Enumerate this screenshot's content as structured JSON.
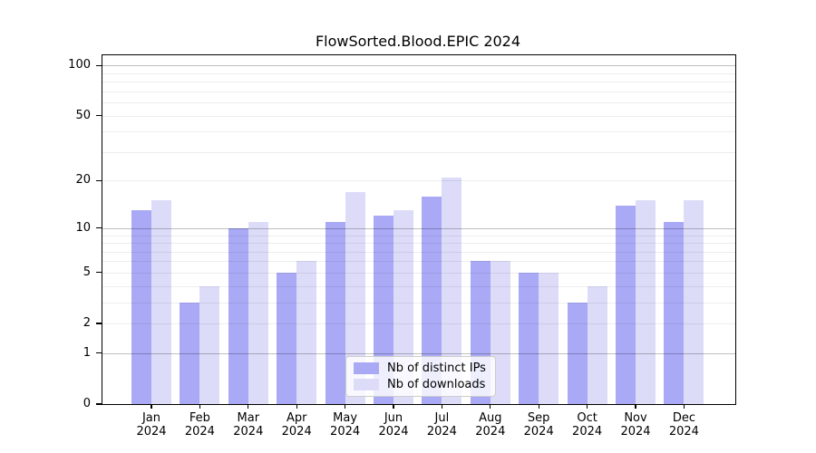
{
  "chart_data": {
    "type": "bar",
    "title": "FlowSorted.Blood.EPIC 2024",
    "categories": [
      "Jan 2024",
      "Feb 2024",
      "Mar 2024",
      "Apr 2024",
      "May 2024",
      "Jun 2024",
      "Jul 2024",
      "Aug 2024",
      "Sep 2024",
      "Oct 2024",
      "Nov 2024",
      "Dec 2024"
    ],
    "series": [
      {
        "name": "Nb of distinct IPs",
        "color": "#a9a9f6",
        "values": [
          13,
          3,
          10,
          5,
          11,
          12,
          16,
          6,
          5,
          3,
          14,
          11
        ]
      },
      {
        "name": "Nb of downloads",
        "color": "#dcdcf9",
        "values": [
          15,
          4,
          11,
          6,
          17,
          13,
          21,
          6,
          5,
          4,
          15,
          15
        ]
      }
    ],
    "yscale": "log1p",
    "ylim": [
      0,
      115
    ],
    "yticks": [
      0,
      1,
      2,
      5,
      10,
      20,
      50,
      100
    ],
    "major_gridlines": [
      1,
      10,
      100
    ],
    "minor_gridlines": [
      2,
      3,
      4,
      5,
      6,
      7,
      8,
      9,
      20,
      30,
      40,
      50,
      60,
      70,
      80,
      90
    ],
    "grid": true,
    "legend_position": "lower center",
    "xlabel": "",
    "ylabel": ""
  },
  "colors": {
    "bar_distinct_ips": "#a9a9f6",
    "bar_downloads": "#dcdcf9",
    "grid_major": "rgba(0,0,0,0.25)",
    "grid_minor": "rgba(0,0,0,0.07)",
    "axis": "#000000",
    "legend_border": "#cccccc",
    "legend_background": "rgba(255,255,255,0.8)"
  }
}
